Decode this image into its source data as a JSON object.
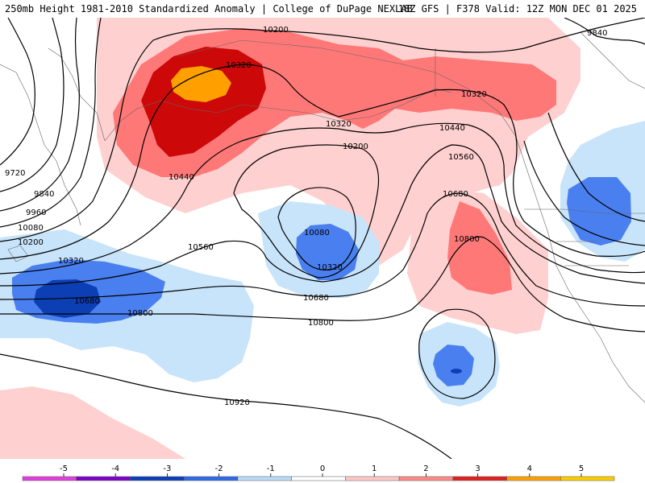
{
  "header": {
    "title": "250mb Height 1981-2010 Standardized Anomaly | College of DuPage NEXLAB",
    "run_info": "18Z GFS | F378 Valid: 12Z MON DEC 01 2025"
  },
  "contour_labels": {
    "c9840_ne": "9840",
    "c10200_n": "10200",
    "c10320_alaska": "10320",
    "c10320_gulf": "10320",
    "c10320_mid": "10320",
    "c10200_mid": "10200",
    "c10440_mid": "10440",
    "c10440_bc": "10440",
    "c10560_bc": "10560",
    "c9720_w": "9720",
    "c9840_w": "9840",
    "c9960_w": "9960",
    "c10080_w": "10080",
    "c10200_w": "10200",
    "c10320_w": "10320",
    "c10680_w": "10680",
    "c10560_c": "10560",
    "c10800_w": "10800",
    "c10080_c": "10080",
    "c10320_c": "10320",
    "c10680_c": "10680",
    "c10800_c": "10800",
    "c10680_e": "10680",
    "c10800_e": "10800",
    "c10920_s": "10920"
  },
  "colorbar": {
    "ticks": [
      "-5",
      "-4",
      "-3",
      "-2",
      "-1",
      "0",
      "1",
      "2",
      "3",
      "4",
      "5"
    ],
    "colors": [
      "#e040e0",
      "#7f00c8",
      "#0b3fb8",
      "#2f6ae6",
      "#b9dcf8",
      "#ffffff",
      "#ffc8c8",
      "#ff8888",
      "#e02020",
      "#ffa000",
      "#ffcc00"
    ]
  },
  "fill_colors": {
    "pos1": "#ffd0d0",
    "pos2": "#ff7878",
    "pos3": "#cc0808",
    "pos4": "#ffa000",
    "neg1": "#c8e4fa",
    "neg2": "#4a7ff0",
    "neg3": "#0c3eb4"
  }
}
